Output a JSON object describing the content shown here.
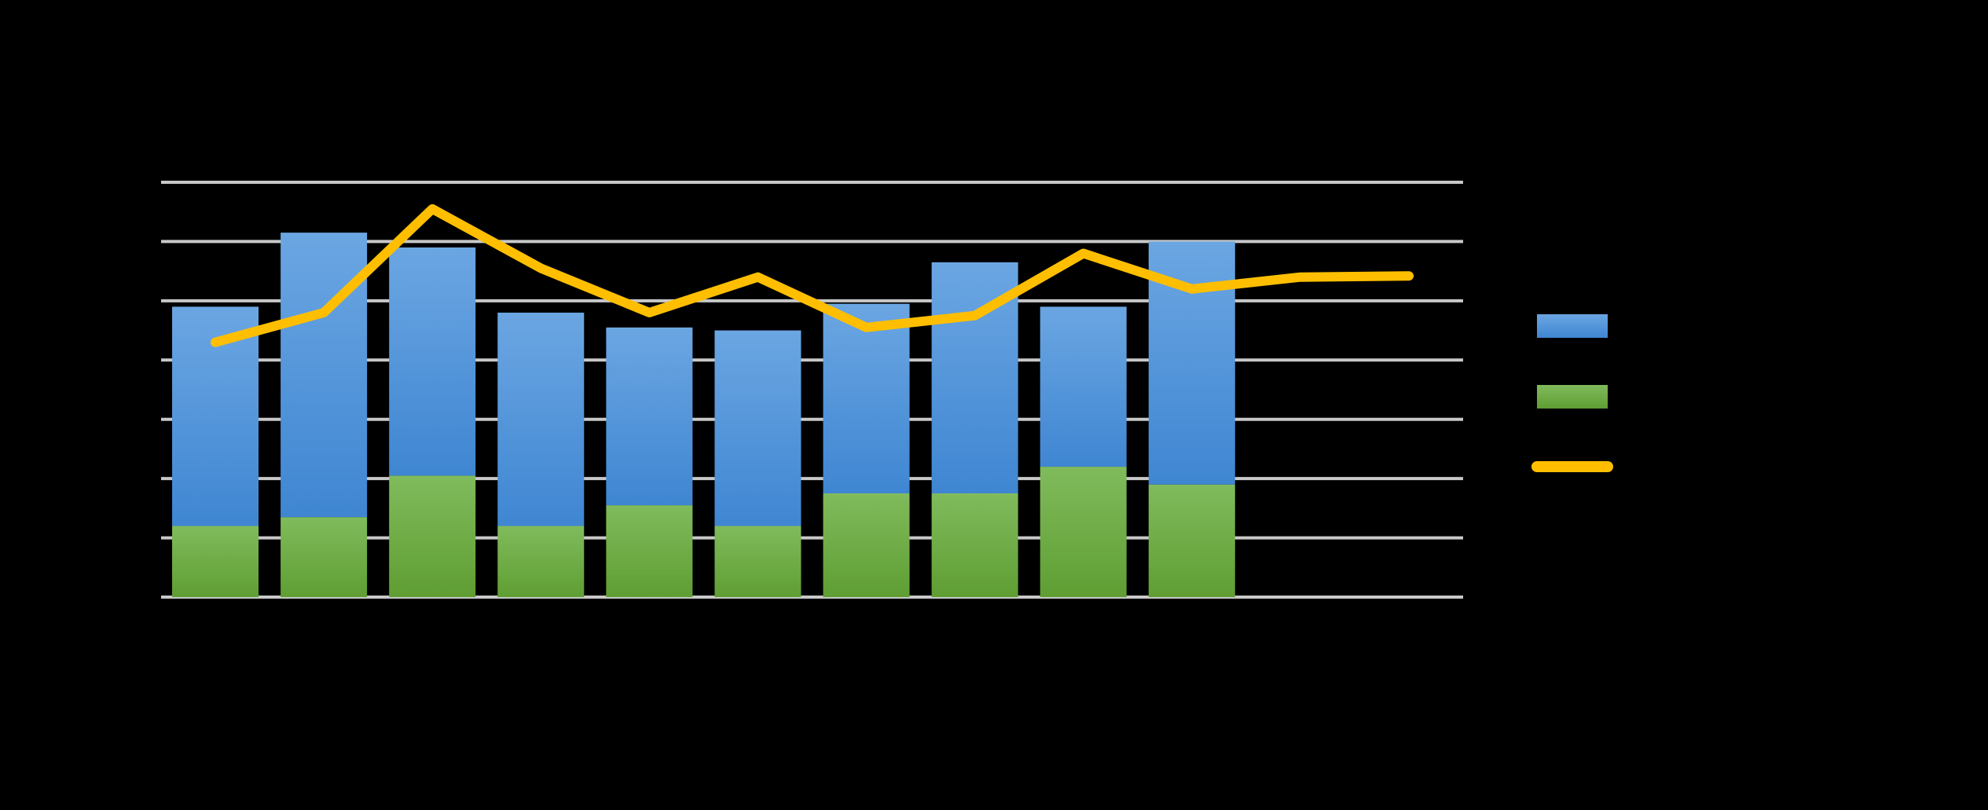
{
  "colors": {
    "background": "#000000",
    "gridline": "#c8c8c8",
    "series_blue": "#4a8fd8",
    "series_green": "#6aaa3f",
    "series_line": "#ffbf00"
  },
  "chart_data": {
    "type": "bar",
    "stacked": true,
    "grid": true,
    "legend_position": "right",
    "categories": [
      "",
      "",
      "",
      "",
      "",
      "",
      "",
      "",
      "",
      "",
      "",
      ""
    ],
    "ylim": [
      0,
      7
    ],
    "series": [
      {
        "key": "green_bar",
        "type": "bar",
        "values": [
          1.2,
          1.35,
          2.05,
          1.2,
          1.55,
          1.2,
          1.75,
          1.75,
          2.2,
          1.9,
          null,
          null
        ]
      },
      {
        "key": "blue_bar",
        "type": "bar",
        "values": [
          3.7,
          4.8,
          3.85,
          3.6,
          3.0,
          3.3,
          3.2,
          3.9,
          2.7,
          4.1,
          null,
          null
        ]
      },
      {
        "key": "line",
        "type": "line",
        "values": [
          4.3,
          4.8,
          6.55,
          5.55,
          4.8,
          5.4,
          4.55,
          4.75,
          5.8,
          5.2,
          5.4,
          5.42
        ]
      }
    ]
  }
}
